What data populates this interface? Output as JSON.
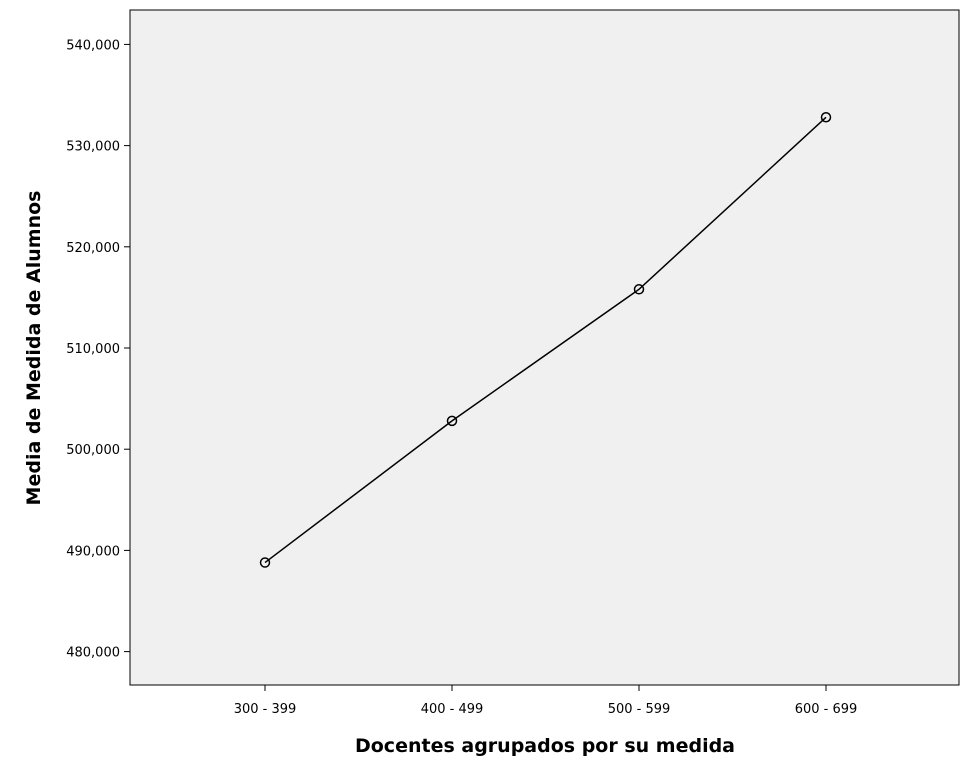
{
  "chart_data": {
    "type": "line",
    "title": "",
    "xlabel": "Docentes agrupados por su medida",
    "ylabel": "Media de Medida de Alumnos",
    "categories": [
      "300 - 399",
      "400 - 499",
      "500 - 599",
      "600 - 699"
    ],
    "series": [
      {
        "values": [
          488.8,
          502.8,
          515.8,
          532.8
        ]
      }
    ],
    "ylim": [
      476.7,
      543.4
    ],
    "yticks": [
      480,
      490,
      500,
      510,
      520,
      530,
      540
    ],
    "ytick_labels": [
      "480,000",
      "490,000",
      "500,000",
      "510,000",
      "520,000",
      "530,000",
      "540,000"
    ],
    "grid": false,
    "markers": "open-circle",
    "colors": {
      "plot_background": "#f0f0f0",
      "line": "#000000",
      "axis": "#000000"
    }
  }
}
